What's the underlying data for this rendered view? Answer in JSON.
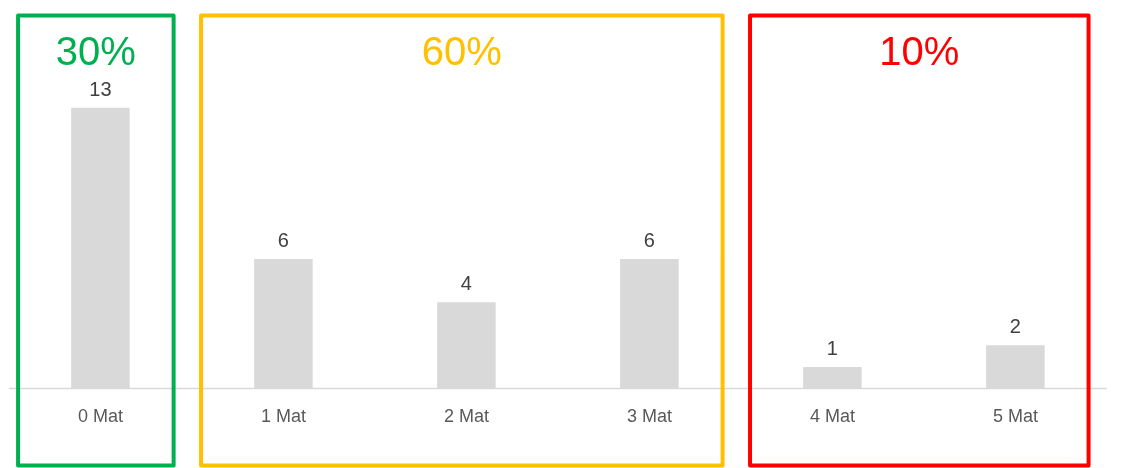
{
  "chart_data": {
    "type": "bar",
    "categories": [
      "0 Mat",
      "1 Mat",
      "2 Mat",
      "3 Mat",
      "4 Mat",
      "5 Mat"
    ],
    "values": [
      13,
      6,
      4,
      6,
      1,
      2
    ],
    "color": "#d9d9d9",
    "data_labels": true,
    "grid": false,
    "annotations": [
      "30%",
      "60%",
      "10%"
    ]
  }
}
